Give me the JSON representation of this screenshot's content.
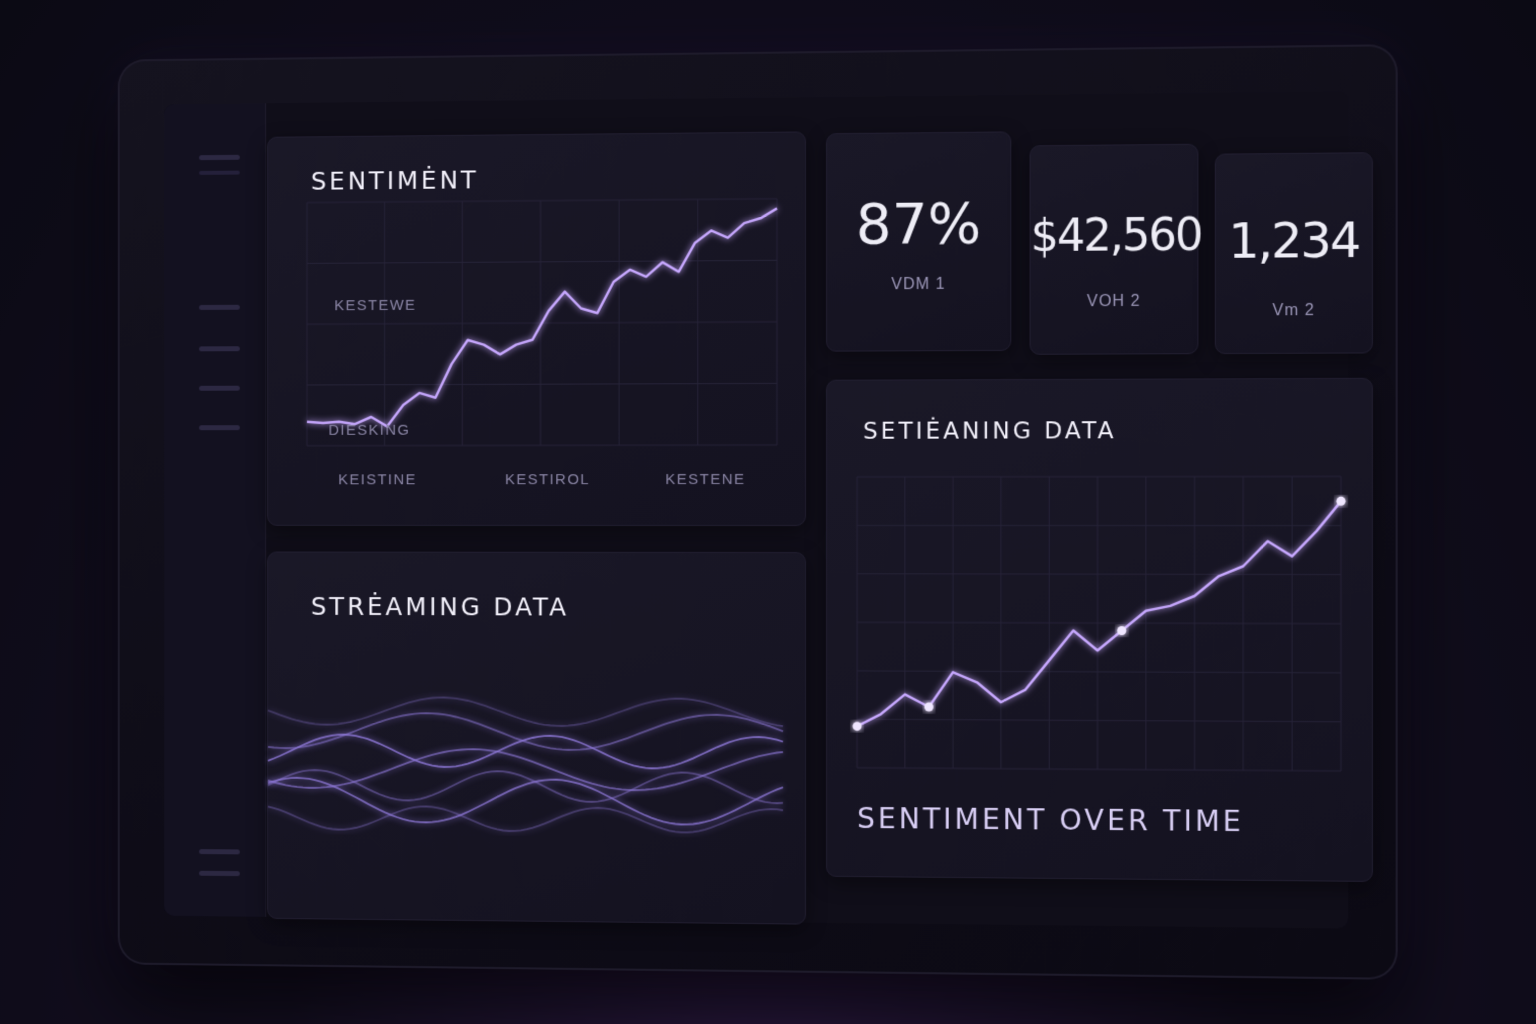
{
  "sidebar": {
    "items": [
      "menu",
      "item-1",
      "item-2",
      "item-3",
      "item-4",
      "item-5",
      "footer"
    ]
  },
  "sentiment_panel": {
    "title": "SENTIMĖNT",
    "y_labels": [
      "KESTEWE",
      "DIESKING"
    ],
    "x_labels": [
      "KEISTINE",
      "KESTIROL",
      "KESTENE"
    ],
    "chart_data": {
      "type": "line",
      "x": [
        0,
        1,
        2,
        3,
        4,
        5,
        6,
        7,
        8,
        9,
        10,
        11,
        12,
        13,
        14,
        15,
        16,
        17,
        18,
        19,
        20,
        21,
        22,
        23,
        24,
        25,
        26,
        27,
        28,
        29
      ],
      "y": [
        8,
        7.5,
        8,
        7,
        10,
        6,
        15,
        20,
        18,
        32,
        42,
        40,
        36,
        40,
        42,
        54,
        62,
        55,
        53,
        66,
        71,
        68,
        74,
        70,
        82,
        87,
        84,
        90,
        92,
        96
      ],
      "ylim": [
        0,
        100
      ]
    }
  },
  "stats": [
    {
      "value": "87%",
      "label": "VDM 1"
    },
    {
      "value": "$42,560",
      "label": "VOH 2"
    },
    {
      "value": "1,234",
      "label": "Vm 2"
    }
  ],
  "streaming_panel": {
    "title": "STRĖAMING DATA"
  },
  "over_time_panel": {
    "title": "SETIĖANING DATA",
    "footer": "SENTIMENT OVER TIME",
    "chart_data": {
      "type": "line",
      "x": [
        0,
        1,
        2,
        3,
        4,
        5,
        6,
        7,
        8,
        9,
        10,
        11,
        12,
        13,
        14,
        15,
        16,
        17,
        18,
        19,
        20
      ],
      "y": [
        5,
        10,
        18,
        13,
        27,
        23,
        15,
        20,
        32,
        44,
        36,
        44,
        52,
        54,
        58,
        66,
        70,
        80,
        74,
        84,
        96
      ],
      "markers": [
        0,
        3,
        11,
        20
      ],
      "ylim": [
        0,
        100
      ]
    }
  },
  "colors": {
    "accent": "#c7a8ff",
    "accent_glow": "#8a5cff",
    "wave": "#8e78d8"
  }
}
